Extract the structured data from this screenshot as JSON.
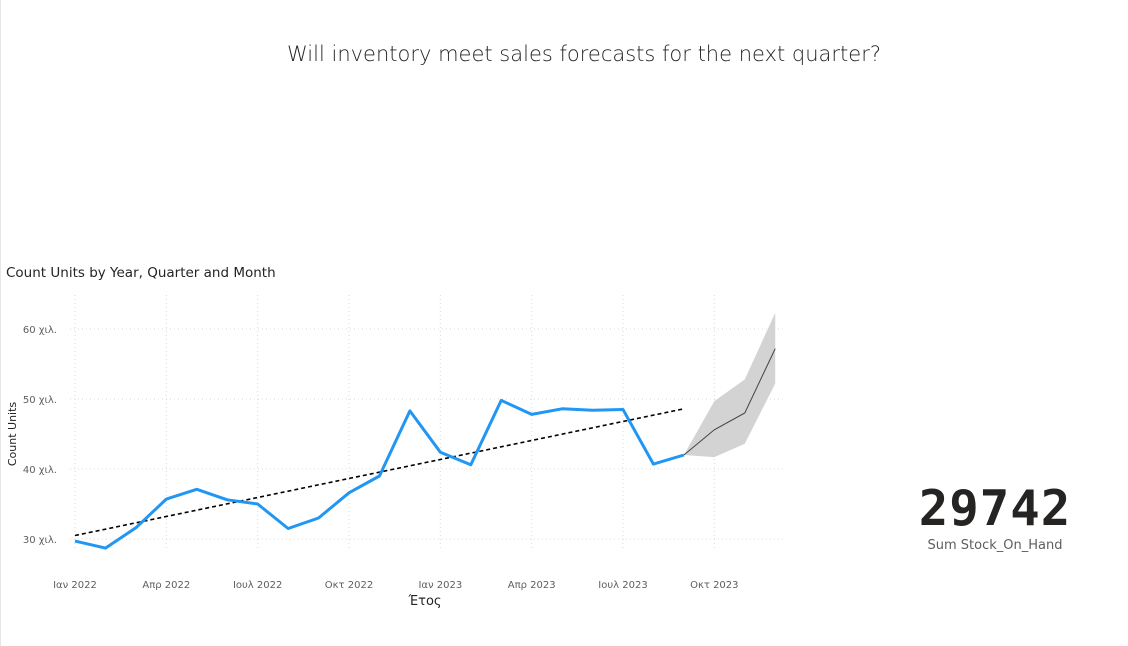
{
  "page": {
    "title": "Will inventory meet sales forecasts for the next quarter?"
  },
  "card": {
    "value": "29742",
    "label": "Sum Stock_On_Hand"
  },
  "colors": {
    "series": "#2196f3",
    "trend": "#000000",
    "forecast": "#444444",
    "band": "#d3d3d3",
    "grid": "#d9d9d9"
  },
  "chart_data": {
    "type": "line",
    "title": "Count Units by Year, Quarter and Month",
    "xlabel": "Έτος",
    "ylabel": "Count Units",
    "x_ticks": [
      "Ιαν 2022",
      "Απρ 2022",
      "Ιουλ 2022",
      "Οκτ 2022",
      "Ιαν 2023",
      "Απρ 2023",
      "Ιουλ 2023",
      "Οκτ 2023"
    ],
    "y_ticks": [
      "30 χιλ.",
      "40 χιλ.",
      "50 χιλ.",
      "60 χιλ."
    ],
    "y_tick_values": [
      30000,
      40000,
      50000,
      60000
    ],
    "ylim": [
      25000,
      64000
    ],
    "grid": true,
    "x": [
      "2022-01",
      "2022-02",
      "2022-03",
      "2022-04",
      "2022-05",
      "2022-06",
      "2022-07",
      "2022-08",
      "2022-09",
      "2022-10",
      "2022-11",
      "2022-12",
      "2023-01",
      "2023-02",
      "2023-03",
      "2023-04",
      "2023-05",
      "2023-06",
      "2023-07",
      "2023-08",
      "2023-09",
      "2023-10",
      "2023-11",
      "2023-12"
    ],
    "series": [
      {
        "values": [
          29700,
          28700,
          31600,
          35700,
          37100,
          35600,
          35000,
          31500,
          33000,
          36600,
          39000,
          48300,
          42400,
          40600,
          49800,
          47800,
          48600,
          48400,
          48500,
          40700,
          42000,
          null,
          null,
          null
        ]
      }
    ],
    "trend_line": {
      "start": [
        "2022-01",
        30500
      ],
      "end": [
        "2023-09",
        48600
      ]
    },
    "forecast": {
      "x": [
        "2023-09",
        "2023-10",
        "2023-11",
        "2023-12"
      ],
      "values": [
        42000,
        45600,
        48000,
        57200
      ],
      "upper": [
        42000,
        49700,
        52800,
        62300
      ],
      "lower": [
        42000,
        41700,
        43600,
        52200
      ]
    }
  }
}
